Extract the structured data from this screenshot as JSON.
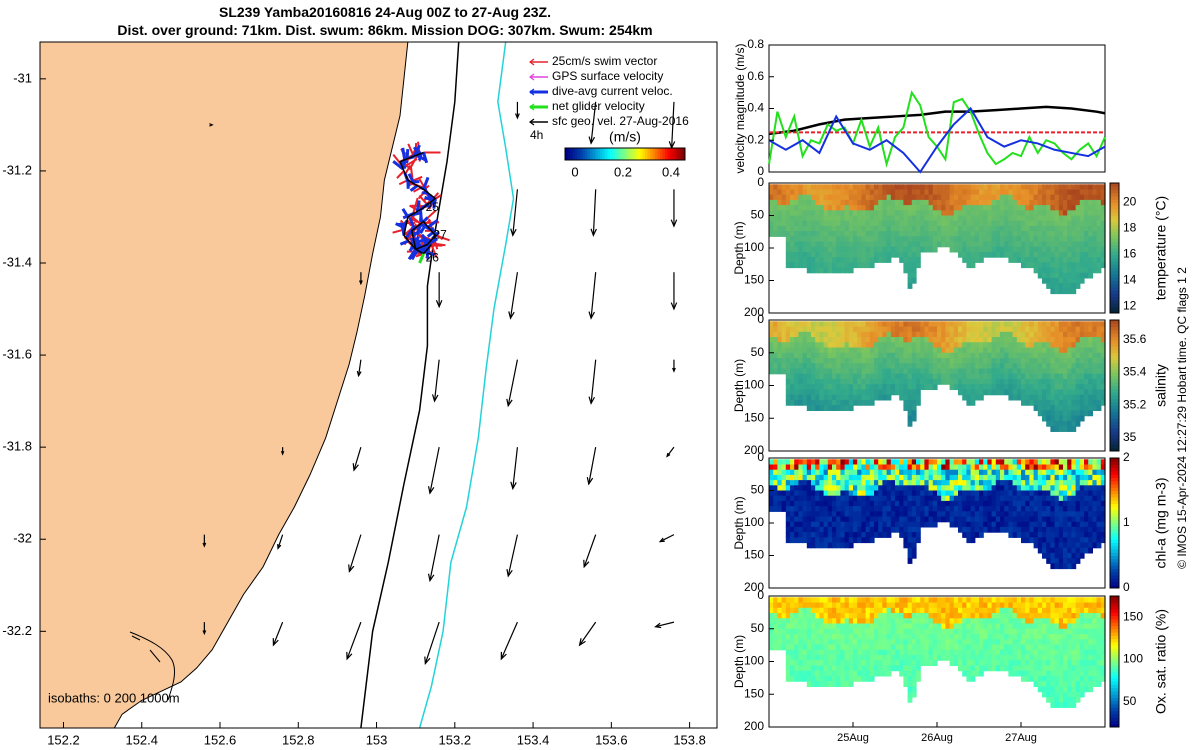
{
  "title": {
    "line1": "SL239 Yamba20160816 24-Aug 00Z to 27-Aug 23Z.",
    "line2": "Dist. over ground: 71km. Dist. swum: 86km. Mission DOG: 307km. Swum: 254km"
  },
  "credit": "© IMOS 15-Apr-2024 12:27:29 Hobart time. QC flags 1  2",
  "colors": {
    "land": "#f9c99b",
    "isobath_200": "#000000",
    "isobath_1000": "#22d3d8",
    "swim_vector": "#e8202a",
    "gps_velocity": "#e040e0",
    "dive_avg": "#1530e0",
    "net_glider": "#22e01c",
    "sfc_geo": "#000000"
  },
  "chart_data": [
    {
      "type": "map",
      "name": "glider track map",
      "x_ticks": [
        "152.2",
        "152.4",
        "152.6",
        "152.8",
        "153",
        "153.2",
        "153.4",
        "153.6",
        "153.8"
      ],
      "y_ticks": [
        "-31",
        "-31.2",
        "-31.4",
        "-31.6",
        "-31.8",
        "-32",
        "-32.2"
      ],
      "xlim": [
        152.14,
        153.87
      ],
      "ylim": [
        -32.41,
        -30.92
      ],
      "legend": {
        "entries": [
          "25cm/s swim vector",
          "GPS surface velocity",
          "dive-avg current veloc.",
          "net glider velocity",
          "sfc geo. vel. 27-Aug-2016"
        ],
        "placement": "top-right"
      },
      "colorbar": {
        "label": "(m/s)",
        "ticks": [
          "0",
          "0.2",
          "0.4"
        ],
        "range": [
          0,
          0.5
        ],
        "scale_label": "4h"
      },
      "isobaths_label": "isobaths: 0   200  1000m",
      "track_labels": [
        "25",
        "27",
        "26"
      ],
      "track_label_positions": [
        [
          153.11,
          -31.28
        ],
        [
          153.13,
          -31.34
        ],
        [
          153.11,
          -31.39
        ]
      ],
      "track": [
        [
          153.12,
          -31.16
        ],
        [
          153.09,
          -31.17
        ],
        [
          153.06,
          -31.18
        ],
        [
          153.08,
          -31.22
        ],
        [
          153.12,
          -31.24
        ],
        [
          153.15,
          -31.26
        ],
        [
          153.12,
          -31.28
        ],
        [
          153.08,
          -31.3
        ],
        [
          153.07,
          -31.34
        ],
        [
          153.1,
          -31.37
        ],
        [
          153.13,
          -31.36
        ],
        [
          153.15,
          -31.34
        ],
        [
          153.12,
          -31.31
        ],
        [
          153.09,
          -31.33
        ],
        [
          153.1,
          -31.37
        ],
        [
          153.12,
          -31.38
        ],
        [
          153.14,
          -31.36
        ]
      ],
      "isobath_200": [
        [
          153.21,
          -30.92
        ],
        [
          153.2,
          -31.05
        ],
        [
          153.18,
          -31.18
        ],
        [
          153.15,
          -31.33
        ],
        [
          153.13,
          -31.45
        ],
        [
          153.13,
          -31.58
        ],
        [
          153.11,
          -31.72
        ],
        [
          153.07,
          -31.88
        ],
        [
          153.03,
          -32.05
        ],
        [
          152.99,
          -32.2
        ],
        [
          152.96,
          -32.41
        ]
      ],
      "isobath_1000": [
        [
          153.33,
          -30.92
        ],
        [
          153.31,
          -31.05
        ],
        [
          153.33,
          -31.15
        ],
        [
          153.35,
          -31.26
        ],
        [
          153.33,
          -31.36
        ],
        [
          153.3,
          -31.5
        ],
        [
          153.28,
          -31.63
        ],
        [
          153.26,
          -31.78
        ],
        [
          153.23,
          -31.93
        ],
        [
          153.19,
          -32.05
        ],
        [
          153.17,
          -32.2
        ],
        [
          153.14,
          -32.32
        ],
        [
          153.11,
          -32.41
        ]
      ],
      "coast": [
        [
          152.14,
          -30.92
        ],
        [
          153.08,
          -30.92
        ],
        [
          153.07,
          -31.0
        ],
        [
          153.06,
          -31.08
        ],
        [
          153.04,
          -31.15
        ],
        [
          153.02,
          -31.22
        ],
        [
          153.01,
          -31.3
        ],
        [
          152.99,
          -31.38
        ],
        [
          152.97,
          -31.47
        ],
        [
          152.95,
          -31.55
        ],
        [
          152.93,
          -31.62
        ],
        [
          152.9,
          -31.7
        ],
        [
          152.87,
          -31.78
        ],
        [
          152.83,
          -31.86
        ],
        [
          152.79,
          -31.93
        ],
        [
          152.75,
          -31.99
        ],
        [
          152.71,
          -32.06
        ],
        [
          152.66,
          -32.12
        ],
        [
          152.62,
          -32.18
        ],
        [
          152.58,
          -32.24
        ],
        [
          152.54,
          -32.28
        ],
        [
          152.5,
          -32.31
        ],
        [
          152.45,
          -32.33
        ],
        [
          152.4,
          -32.35
        ],
        [
          152.35,
          -32.38
        ],
        [
          152.33,
          -32.41
        ],
        [
          152.14,
          -32.41
        ]
      ],
      "current_vectors": [
        {
          "lon": 152.58,
          "lat": -31.1,
          "u": 0.0,
          "v": 0.0
        },
        {
          "lon": 153.36,
          "lat": -31.05,
          "u": 0.0,
          "v": -0.07
        },
        {
          "lon": 153.56,
          "lat": -31.05,
          "u": -0.02,
          "v": -0.18
        },
        {
          "lon": 153.76,
          "lat": -31.05,
          "u": -0.01,
          "v": -0.2
        },
        {
          "lon": 153.36,
          "lat": -31.24,
          "u": -0.02,
          "v": -0.2
        },
        {
          "lon": 153.56,
          "lat": -31.24,
          "u": -0.01,
          "v": -0.2
        },
        {
          "lon": 153.76,
          "lat": -31.24,
          "u": 0.0,
          "v": -0.16
        },
        {
          "lon": 152.96,
          "lat": -31.42,
          "u": 0.0,
          "v": -0.05
        },
        {
          "lon": 153.16,
          "lat": -31.42,
          "u": 0.0,
          "v": -0.15
        },
        {
          "lon": 153.36,
          "lat": -31.42,
          "u": -0.03,
          "v": -0.2
        },
        {
          "lon": 153.56,
          "lat": -31.42,
          "u": -0.02,
          "v": -0.2
        },
        {
          "lon": 153.76,
          "lat": -31.42,
          "u": 0.0,
          "v": -0.16
        },
        {
          "lon": 152.96,
          "lat": -31.61,
          "u": -0.01,
          "v": -0.07
        },
        {
          "lon": 153.16,
          "lat": -31.61,
          "u": -0.02,
          "v": -0.18
        },
        {
          "lon": 153.36,
          "lat": -31.61,
          "u": -0.04,
          "v": -0.2
        },
        {
          "lon": 153.56,
          "lat": -31.61,
          "u": -0.02,
          "v": -0.19
        },
        {
          "lon": 153.76,
          "lat": -31.61,
          "u": 0.0,
          "v": -0.05
        },
        {
          "lon": 152.76,
          "lat": -31.8,
          "u": 0.0,
          "v": -0.03
        },
        {
          "lon": 152.96,
          "lat": -31.8,
          "u": -0.03,
          "v": -0.1
        },
        {
          "lon": 153.16,
          "lat": -31.8,
          "u": -0.04,
          "v": -0.2
        },
        {
          "lon": 153.36,
          "lat": -31.8,
          "u": -0.02,
          "v": -0.18
        },
        {
          "lon": 153.56,
          "lat": -31.8,
          "u": -0.03,
          "v": -0.16
        },
        {
          "lon": 153.76,
          "lat": -31.8,
          "u": -0.03,
          "v": -0.04
        },
        {
          "lon": 152.56,
          "lat": -31.99,
          "u": 0.0,
          "v": -0.05
        },
        {
          "lon": 152.76,
          "lat": -31.99,
          "u": -0.02,
          "v": -0.06
        },
        {
          "lon": 152.96,
          "lat": -31.99,
          "u": -0.05,
          "v": -0.16
        },
        {
          "lon": 153.16,
          "lat": -31.99,
          "u": -0.04,
          "v": -0.2
        },
        {
          "lon": 153.36,
          "lat": -31.99,
          "u": -0.04,
          "v": -0.18
        },
        {
          "lon": 153.56,
          "lat": -31.99,
          "u": -0.05,
          "v": -0.14
        },
        {
          "lon": 153.76,
          "lat": -31.99,
          "u": -0.06,
          "v": -0.03
        },
        {
          "lon": 152.56,
          "lat": -32.18,
          "u": 0.0,
          "v": -0.05
        },
        {
          "lon": 152.76,
          "lat": -32.18,
          "u": -0.04,
          "v": -0.1
        },
        {
          "lon": 152.96,
          "lat": -32.18,
          "u": -0.06,
          "v": -0.16
        },
        {
          "lon": 153.16,
          "lat": -32.18,
          "u": -0.06,
          "v": -0.18
        },
        {
          "lon": 153.36,
          "lat": -32.18,
          "u": -0.07,
          "v": -0.16
        },
        {
          "lon": 153.56,
          "lat": -32.18,
          "u": -0.07,
          "v": -0.1
        },
        {
          "lon": 153.76,
          "lat": -32.18,
          "u": -0.08,
          "v": -0.02
        }
      ]
    },
    {
      "type": "line",
      "name": "velocity magnitude",
      "ylabel": "velocity magnitude (m/s)",
      "y_ticks": [
        "0",
        "0.2",
        "0.4",
        "0.6",
        "0.8"
      ],
      "ylim": [
        0,
        0.8
      ],
      "xlim": [
        24.0,
        28.0
      ],
      "series": [
        {
          "name": "sfc geo. vel.",
          "color": "#000000",
          "x": [
            24.0,
            24.3,
            24.6,
            24.9,
            25.2,
            25.5,
            25.8,
            26.1,
            26.4,
            26.7,
            27.0,
            27.3,
            27.6,
            27.9,
            28.0
          ],
          "y": [
            0.24,
            0.26,
            0.3,
            0.33,
            0.34,
            0.35,
            0.36,
            0.38,
            0.38,
            0.39,
            0.4,
            0.41,
            0.4,
            0.38,
            0.37
          ]
        },
        {
          "name": "swim vector",
          "color": "#e8202a",
          "x": [
            24.0,
            28.0
          ],
          "y": [
            0.25,
            0.25
          ]
        },
        {
          "name": "net glider velocity",
          "color": "#22e01c",
          "x": [
            24.0,
            24.1,
            24.2,
            24.3,
            24.4,
            24.5,
            24.6,
            24.7,
            24.8,
            24.9,
            25.0,
            25.1,
            25.2,
            25.3,
            25.4,
            25.5,
            25.6,
            25.7,
            25.8,
            25.9,
            26.0,
            26.1,
            26.2,
            26.3,
            26.4,
            26.5,
            26.6,
            26.7,
            26.8,
            26.9,
            27.0,
            27.1,
            27.2,
            27.3,
            27.4,
            27.5,
            27.6,
            27.7,
            27.8,
            27.9,
            28.0
          ],
          "y": [
            0.05,
            0.38,
            0.22,
            0.35,
            0.1,
            0.2,
            0.18,
            0.3,
            0.26,
            0.28,
            0.18,
            0.33,
            0.16,
            0.28,
            0.05,
            0.22,
            0.28,
            0.5,
            0.42,
            0.22,
            0.16,
            0.08,
            0.44,
            0.46,
            0.38,
            0.24,
            0.12,
            0.05,
            0.08,
            0.12,
            0.1,
            0.22,
            0.12,
            0.2,
            0.18,
            0.12,
            0.08,
            0.14,
            0.18,
            0.1,
            0.22
          ]
        },
        {
          "name": "dive-avg current veloc.",
          "color": "#1530e0",
          "x": [
            24.0,
            24.2,
            24.4,
            24.6,
            24.8,
            25.0,
            25.2,
            25.4,
            25.6,
            25.8,
            26.0,
            26.2,
            26.4,
            26.6,
            26.8,
            27.0,
            27.2,
            27.4,
            27.6,
            27.8,
            28.0
          ],
          "y": [
            0.2,
            0.14,
            0.2,
            0.12,
            0.35,
            0.18,
            0.14,
            0.2,
            0.12,
            0.0,
            0.16,
            0.3,
            0.4,
            0.22,
            0.16,
            0.2,
            0.18,
            0.14,
            0.12,
            0.1,
            0.16
          ]
        }
      ]
    },
    {
      "type": "heatmap",
      "name": "temperature section",
      "ylabel": "Depth (m)",
      "y_ticks": [
        "0",
        "50",
        "100",
        "150",
        "200"
      ],
      "ylim": [
        0,
        200
      ],
      "colorbar": {
        "label": "temperature (°C)",
        "ticks": [
          "12",
          "14",
          "16",
          "18",
          "20"
        ],
        "range": [
          11.5,
          21.5
        ]
      }
    },
    {
      "type": "heatmap",
      "name": "salinity section",
      "ylabel": "Depth (m)",
      "y_ticks": [
        "0",
        "50",
        "100",
        "150",
        "200"
      ],
      "ylim": [
        0,
        200
      ],
      "colorbar": {
        "label": "salinity",
        "ticks": [
          "35",
          "35.2",
          "35.4",
          "35.6"
        ],
        "range": [
          34.92,
          35.72
        ]
      }
    },
    {
      "type": "heatmap",
      "name": "chlorophyll section",
      "ylabel": "Depth (m)",
      "y_ticks": [
        "0",
        "50",
        "100",
        "150",
        "200"
      ],
      "ylim": [
        0,
        200
      ],
      "colorbar": {
        "label": "chl-a (mg m-3)",
        "ticks": [
          "0",
          "1",
          "2"
        ],
        "range": [
          0,
          2
        ]
      }
    },
    {
      "type": "heatmap",
      "name": "oxygen section",
      "ylabel": "Depth (m)",
      "y_ticks": [
        "0",
        "50",
        "100",
        "150",
        "200"
      ],
      "ylim": [
        0,
        200
      ],
      "x_ticks": [
        "25Aug",
        "26Aug",
        "27Aug"
      ],
      "colorbar": {
        "label": "Ox. sat. ratio (%)",
        "ticks": [
          "50",
          "100",
          "150"
        ],
        "range": [
          20,
          175
        ]
      }
    }
  ]
}
